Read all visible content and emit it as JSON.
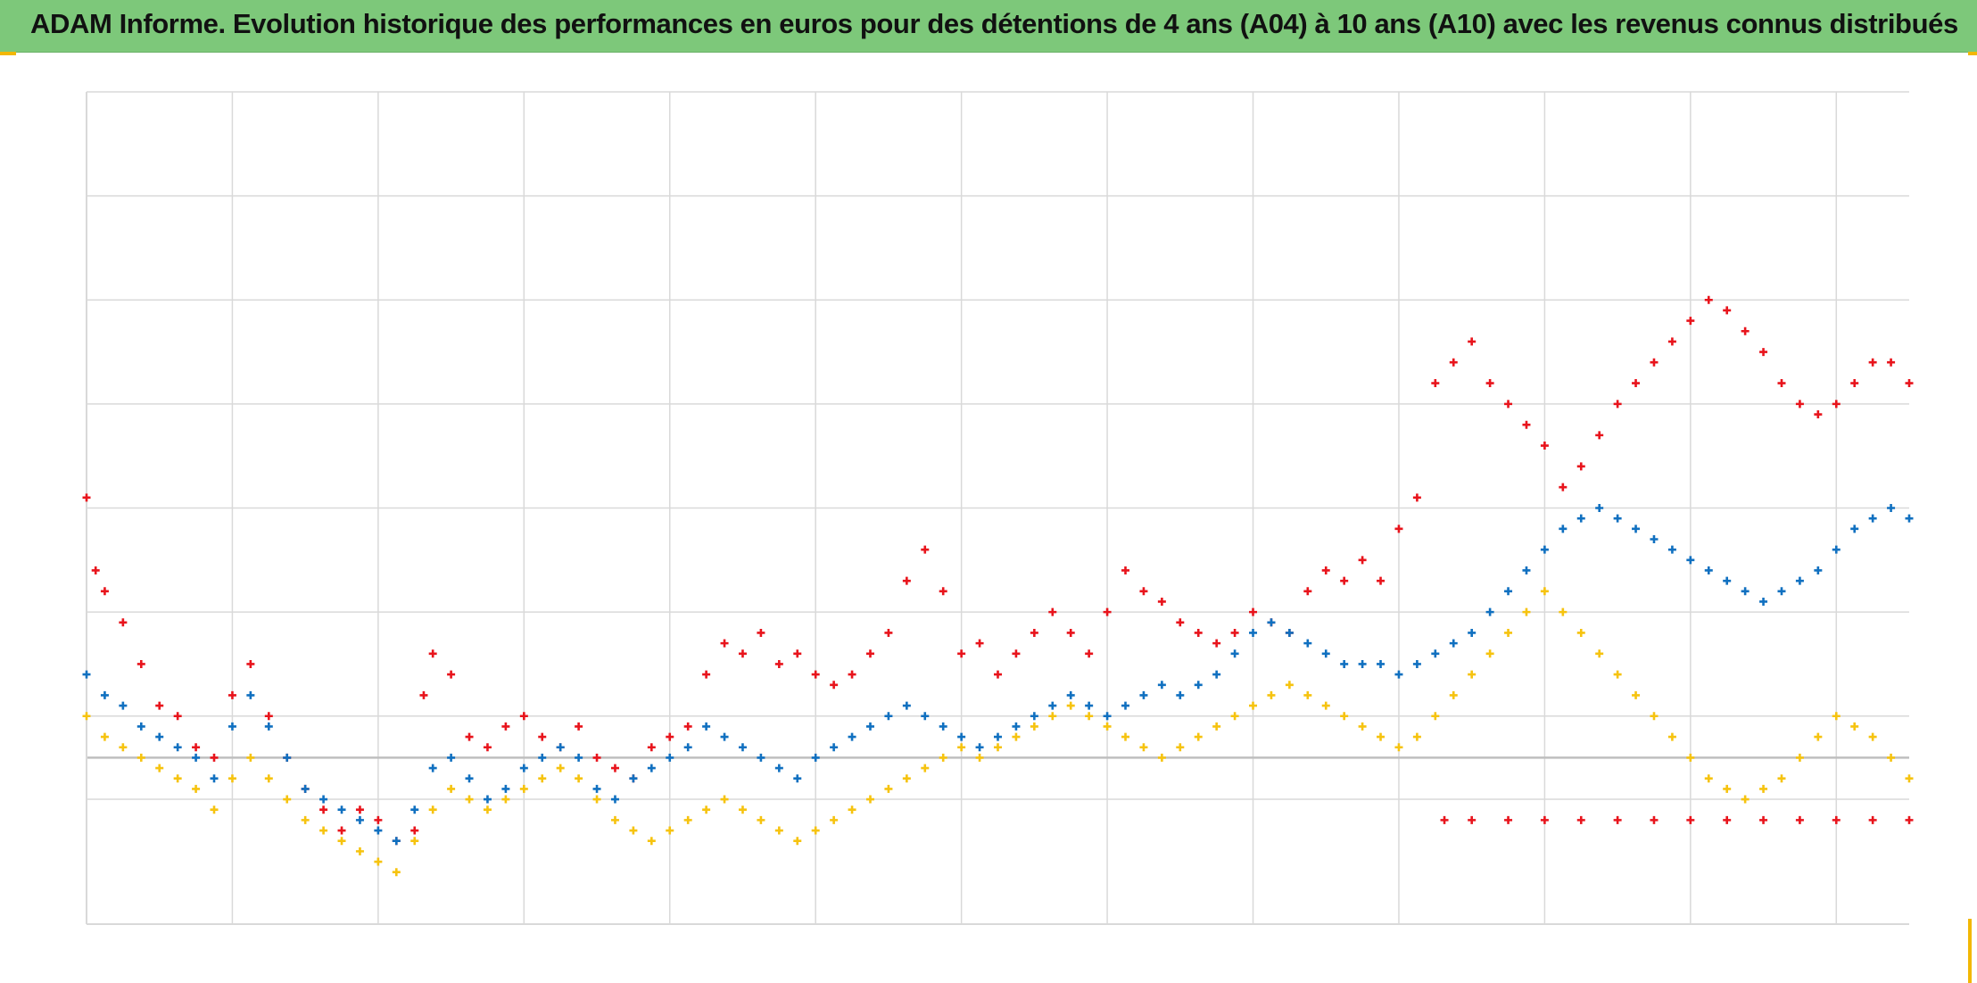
{
  "title": "ADAM Informe. Evolution historique des performances en euros pour des détentions de 4 ans (A04) à 10 ans (A10) avec les revenus connus distribués",
  "colors": {
    "title_bg": "#7dc87a",
    "grid": "#d9d9d9",
    "zero_line": "#bfbfbf",
    "series_red": "#e8141c",
    "series_blue": "#1070c0",
    "series_yellow": "#f6c30f"
  },
  "chart_data": {
    "type": "scatter",
    "title": "ADAM Informe. Evolution historique des performances en euros pour des détentions de 4 ans (A04) à 10 ans (A10) avec les revenus connus distribués",
    "marker": "plus",
    "grid": true,
    "legend": "none",
    "xlim": [
      0,
      100
    ],
    "ylim": [
      -16,
      64
    ],
    "x_gridlines": [
      0,
      8,
      16,
      24,
      32,
      40,
      48,
      56,
      64,
      72,
      80,
      88,
      96
    ],
    "y_gridlines": [
      -16,
      -4,
      0,
      4,
      14,
      24,
      34,
      44,
      54,
      64
    ],
    "zero_line": 0,
    "series": [
      {
        "color": "#e8141c",
        "points": [
          [
            0,
            25
          ],
          [
            0.5,
            18
          ],
          [
            1,
            16
          ],
          [
            2,
            13
          ],
          [
            3,
            9
          ],
          [
            4,
            5
          ],
          [
            5,
            4
          ],
          [
            6,
            1
          ],
          [
            7,
            0
          ],
          [
            8,
            6
          ],
          [
            9,
            9
          ],
          [
            10,
            4
          ],
          [
            11,
            0
          ],
          [
            12,
            -3
          ],
          [
            13,
            -5
          ],
          [
            14,
            -7
          ],
          [
            15,
            -5
          ],
          [
            16,
            -6
          ],
          [
            17,
            -8
          ],
          [
            18,
            -7
          ],
          [
            18.5,
            6
          ],
          [
            19,
            10
          ],
          [
            20,
            8
          ],
          [
            21,
            2
          ],
          [
            22,
            1
          ],
          [
            23,
            3
          ],
          [
            24,
            4
          ],
          [
            25,
            2
          ],
          [
            26,
            1
          ],
          [
            27,
            3
          ],
          [
            28,
            0
          ],
          [
            29,
            -1
          ],
          [
            30,
            -2
          ],
          [
            31,
            1
          ],
          [
            32,
            2
          ],
          [
            33,
            3
          ],
          [
            34,
            8
          ],
          [
            35,
            11
          ],
          [
            36,
            10
          ],
          [
            37,
            12
          ],
          [
            38,
            9
          ],
          [
            39,
            10
          ],
          [
            40,
            8
          ],
          [
            41,
            7
          ],
          [
            42,
            8
          ],
          [
            43,
            10
          ],
          [
            44,
            12
          ],
          [
            45,
            17
          ],
          [
            46,
            20
          ],
          [
            47,
            16
          ],
          [
            48,
            10
          ],
          [
            49,
            11
          ],
          [
            50,
            8
          ],
          [
            51,
            10
          ],
          [
            52,
            12
          ],
          [
            53,
            14
          ],
          [
            54,
            12
          ],
          [
            55,
            10
          ],
          [
            56,
            14
          ],
          [
            57,
            18
          ],
          [
            58,
            16
          ],
          [
            59,
            15
          ],
          [
            60,
            13
          ],
          [
            61,
            12
          ],
          [
            62,
            11
          ],
          [
            63,
            12
          ],
          [
            64,
            14
          ],
          [
            65,
            13
          ],
          [
            66,
            12
          ],
          [
            67,
            16
          ],
          [
            68,
            18
          ],
          [
            69,
            17
          ],
          [
            70,
            19
          ],
          [
            71,
            17
          ],
          [
            72,
            22
          ],
          [
            73,
            25
          ],
          [
            74,
            36
          ],
          [
            75,
            38
          ],
          [
            76,
            40
          ],
          [
            77,
            36
          ],
          [
            78,
            34
          ],
          [
            79,
            32
          ],
          [
            80,
            30
          ],
          [
            81,
            26
          ],
          [
            82,
            28
          ],
          [
            83,
            31
          ],
          [
            84,
            34
          ],
          [
            85,
            36
          ],
          [
            86,
            38
          ],
          [
            87,
            40
          ],
          [
            88,
            42
          ],
          [
            89,
            44
          ],
          [
            90,
            43
          ],
          [
            91,
            41
          ],
          [
            92,
            39
          ],
          [
            93,
            36
          ],
          [
            94,
            34
          ],
          [
            95,
            33
          ],
          [
            96,
            34
          ],
          [
            97,
            36
          ],
          [
            98,
            38
          ],
          [
            99,
            38
          ],
          [
            100,
            36
          ]
        ]
      },
      {
        "color": "#1070c0",
        "points": [
          [
            0,
            8
          ],
          [
            1,
            6
          ],
          [
            2,
            5
          ],
          [
            3,
            3
          ],
          [
            4,
            2
          ],
          [
            5,
            1
          ],
          [
            6,
            0
          ],
          [
            7,
            -2
          ],
          [
            8,
            3
          ],
          [
            9,
            6
          ],
          [
            10,
            3
          ],
          [
            11,
            0
          ],
          [
            12,
            -3
          ],
          [
            13,
            -4
          ],
          [
            14,
            -5
          ],
          [
            15,
            -6
          ],
          [
            16,
            -7
          ],
          [
            17,
            -8
          ],
          [
            18,
            -5
          ],
          [
            19,
            -1
          ],
          [
            20,
            0
          ],
          [
            21,
            -2
          ],
          [
            22,
            -4
          ],
          [
            23,
            -3
          ],
          [
            24,
            -1
          ],
          [
            25,
            0
          ],
          [
            26,
            1
          ],
          [
            27,
            0
          ],
          [
            28,
            -3
          ],
          [
            29,
            -4
          ],
          [
            30,
            -2
          ],
          [
            31,
            -1
          ],
          [
            32,
            0
          ],
          [
            33,
            1
          ],
          [
            34,
            3
          ],
          [
            35,
            2
          ],
          [
            36,
            1
          ],
          [
            37,
            0
          ],
          [
            38,
            -1
          ],
          [
            39,
            -2
          ],
          [
            40,
            0
          ],
          [
            41,
            1
          ],
          [
            42,
            2
          ],
          [
            43,
            3
          ],
          [
            44,
            4
          ],
          [
            45,
            5
          ],
          [
            46,
            4
          ],
          [
            47,
            3
          ],
          [
            48,
            2
          ],
          [
            49,
            1
          ],
          [
            50,
            2
          ],
          [
            51,
            3
          ],
          [
            52,
            4
          ],
          [
            53,
            5
          ],
          [
            54,
            6
          ],
          [
            55,
            5
          ],
          [
            56,
            4
          ],
          [
            57,
            5
          ],
          [
            58,
            6
          ],
          [
            59,
            7
          ],
          [
            60,
            6
          ],
          [
            61,
            7
          ],
          [
            62,
            8
          ],
          [
            63,
            10
          ],
          [
            64,
            12
          ],
          [
            65,
            13
          ],
          [
            66,
            12
          ],
          [
            67,
            11
          ],
          [
            68,
            10
          ],
          [
            69,
            9
          ],
          [
            70,
            9
          ],
          [
            71,
            9
          ],
          [
            72,
            8
          ],
          [
            73,
            9
          ],
          [
            74,
            10
          ],
          [
            75,
            11
          ],
          [
            76,
            12
          ],
          [
            77,
            14
          ],
          [
            78,
            16
          ],
          [
            79,
            18
          ],
          [
            80,
            20
          ],
          [
            81,
            22
          ],
          [
            82,
            23
          ],
          [
            83,
            24
          ],
          [
            84,
            23
          ],
          [
            85,
            22
          ],
          [
            86,
            21
          ],
          [
            87,
            20
          ],
          [
            88,
            19
          ],
          [
            89,
            18
          ],
          [
            90,
            17
          ],
          [
            91,
            16
          ],
          [
            92,
            15
          ],
          [
            93,
            16
          ],
          [
            94,
            17
          ],
          [
            95,
            18
          ],
          [
            96,
            20
          ],
          [
            97,
            22
          ],
          [
            98,
            23
          ],
          [
            99,
            24
          ],
          [
            100,
            23
          ]
        ]
      },
      {
        "color": "#f6c30f",
        "points": [
          [
            0,
            4
          ],
          [
            1,
            2
          ],
          [
            2,
            1
          ],
          [
            3,
            0
          ],
          [
            4,
            -1
          ],
          [
            5,
            -2
          ],
          [
            6,
            -3
          ],
          [
            7,
            -5
          ],
          [
            8,
            -2
          ],
          [
            9,
            0
          ],
          [
            10,
            -2
          ],
          [
            11,
            -4
          ],
          [
            12,
            -6
          ],
          [
            13,
            -7
          ],
          [
            14,
            -8
          ],
          [
            15,
            -9
          ],
          [
            16,
            -10
          ],
          [
            17,
            -11
          ],
          [
            18,
            -8
          ],
          [
            19,
            -5
          ],
          [
            20,
            -3
          ],
          [
            21,
            -4
          ],
          [
            22,
            -5
          ],
          [
            23,
            -4
          ],
          [
            24,
            -3
          ],
          [
            25,
            -2
          ],
          [
            26,
            -1
          ],
          [
            27,
            -2
          ],
          [
            28,
            -4
          ],
          [
            29,
            -6
          ],
          [
            30,
            -7
          ],
          [
            31,
            -8
          ],
          [
            32,
            -7
          ],
          [
            33,
            -6
          ],
          [
            34,
            -5
          ],
          [
            35,
            -4
          ],
          [
            36,
            -5
          ],
          [
            37,
            -6
          ],
          [
            38,
            -7
          ],
          [
            39,
            -8
          ],
          [
            40,
            -7
          ],
          [
            41,
            -6
          ],
          [
            42,
            -5
          ],
          [
            43,
            -4
          ],
          [
            44,
            -3
          ],
          [
            45,
            -2
          ],
          [
            46,
            -1
          ],
          [
            47,
            0
          ],
          [
            48,
            1
          ],
          [
            49,
            0
          ],
          [
            50,
            1
          ],
          [
            51,
            2
          ],
          [
            52,
            3
          ],
          [
            53,
            4
          ],
          [
            54,
            5
          ],
          [
            55,
            4
          ],
          [
            56,
            3
          ],
          [
            57,
            2
          ],
          [
            58,
            1
          ],
          [
            59,
            0
          ],
          [
            60,
            1
          ],
          [
            61,
            2
          ],
          [
            62,
            3
          ],
          [
            63,
            4
          ],
          [
            64,
            5
          ],
          [
            65,
            6
          ],
          [
            66,
            7
          ],
          [
            67,
            6
          ],
          [
            68,
            5
          ],
          [
            69,
            4
          ],
          [
            70,
            3
          ],
          [
            71,
            2
          ],
          [
            72,
            1
          ],
          [
            73,
            2
          ],
          [
            74,
            4
          ],
          [
            75,
            6
          ],
          [
            76,
            8
          ],
          [
            77,
            10
          ],
          [
            78,
            12
          ],
          [
            79,
            14
          ],
          [
            80,
            16
          ],
          [
            81,
            14
          ],
          [
            82,
            12
          ],
          [
            83,
            10
          ],
          [
            84,
            8
          ],
          [
            85,
            6
          ],
          [
            86,
            4
          ],
          [
            87,
            2
          ],
          [
            88,
            0
          ],
          [
            89,
            -2
          ],
          [
            90,
            -3
          ],
          [
            91,
            -4
          ],
          [
            92,
            -3
          ],
          [
            93,
            -2
          ],
          [
            94,
            0
          ],
          [
            95,
            2
          ],
          [
            96,
            4
          ],
          [
            97,
            3
          ],
          [
            98,
            2
          ],
          [
            99,
            0
          ],
          [
            100,
            -2
          ]
        ]
      },
      {
        "color": "#e8141c",
        "points": [
          [
            74.5,
            -6
          ],
          [
            76,
            -6
          ],
          [
            78,
            -6
          ],
          [
            80,
            -6
          ],
          [
            82,
            -6
          ],
          [
            84,
            -6
          ],
          [
            86,
            -6
          ],
          [
            88,
            -6
          ],
          [
            90,
            -6
          ],
          [
            92,
            -6
          ],
          [
            94,
            -6
          ],
          [
            96,
            -6
          ],
          [
            98,
            -6
          ],
          [
            100,
            -6
          ]
        ]
      }
    ]
  }
}
